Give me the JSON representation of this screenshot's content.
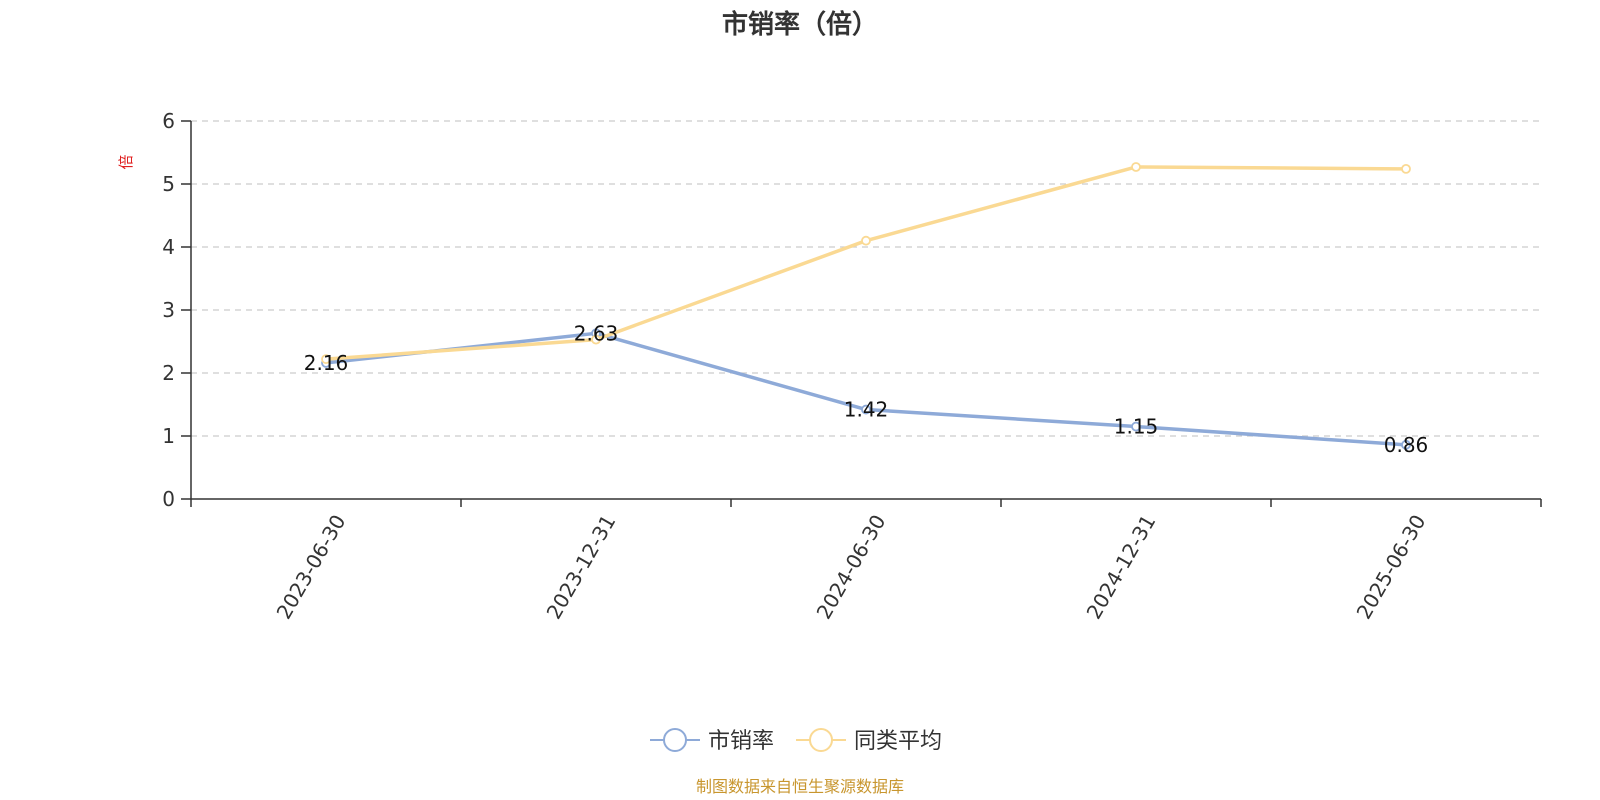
{
  "chart_data": {
    "type": "line",
    "title": "市销率（倍）",
    "ylabel": "倍",
    "xlabel": "",
    "categories": [
      "2023-06-30",
      "2023-12-31",
      "2024-06-30",
      "2024-12-31",
      "2025-06-30"
    ],
    "ylim": [
      0,
      6
    ],
    "yticks": [
      0,
      1,
      2,
      3,
      4,
      5,
      6
    ],
    "grid": true,
    "legend_position": "bottom",
    "series": [
      {
        "name": "市销率",
        "values": [
          2.16,
          2.63,
          1.42,
          1.15,
          0.86
        ],
        "labels": [
          "2.16",
          "2.63",
          "1.42",
          "1.15",
          "0.86"
        ],
        "color": "#8eaad8"
      },
      {
        "name": "同类平均",
        "values": [
          2.22,
          2.53,
          4.1,
          5.27,
          5.24
        ],
        "color": "#fad993"
      }
    ]
  },
  "colors": {
    "unit_label": "#e02020",
    "footer": "#c8962e",
    "axis": "#333333",
    "grid": "#cccccc"
  },
  "footer": {
    "text": "制图数据来自恒生聚源数据库"
  }
}
